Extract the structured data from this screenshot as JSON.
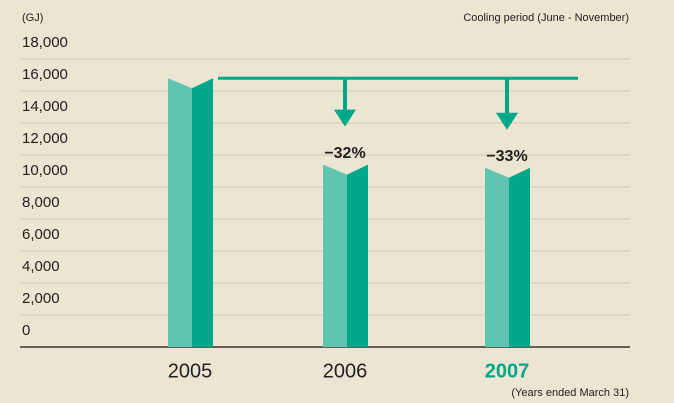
{
  "chart_data": {
    "type": "bar",
    "unit_label": "(GJ)",
    "subtitle": "Cooling period (June - November)",
    "x_note": "(Years ended March 31)",
    "categories": [
      "2005",
      "2006",
      "2007"
    ],
    "values": [
      16800,
      11400,
      11200
    ],
    "annotations": [
      null,
      "−32%",
      "−33%"
    ],
    "color": "#5fc4b0",
    "side_color": "#00a88a",
    "highlight_category": 2,
    "highlight_color": "#00a88a",
    "ylim": [
      0,
      18000
    ],
    "yticks": [
      0,
      {
        "value": 2000,
        "label": "2,000"
      },
      {
        "value": 4000,
        "label": "4,000"
      },
      {
        "value": 6000,
        "label": "6,000"
      },
      {
        "value": 8000,
        "label": "8,000"
      },
      {
        "value": 10000,
        "label": "10,000"
      },
      {
        "value": 12000,
        "label": "12,000"
      },
      {
        "value": 14000,
        "label": "14,000"
      },
      {
        "value": 16000,
        "label": "16,000"
      },
      {
        "value": 18000,
        "label": "18,000"
      }
    ],
    "grid": true
  }
}
